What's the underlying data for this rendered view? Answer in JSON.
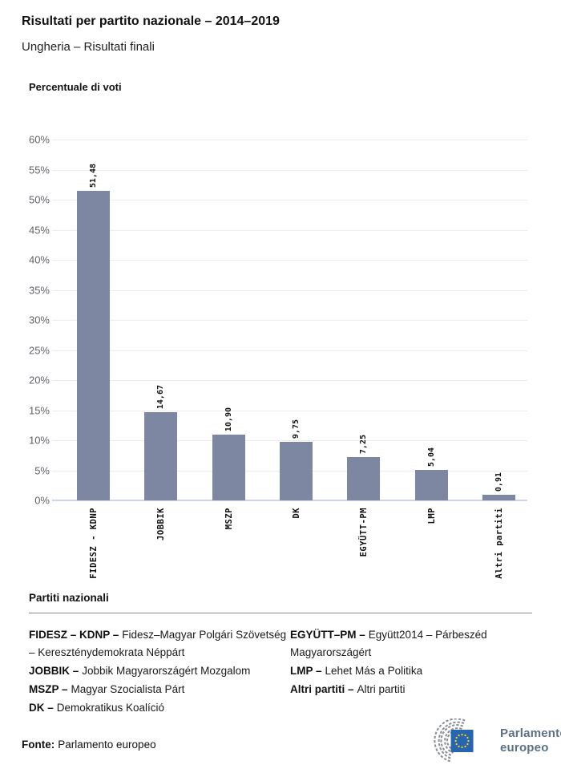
{
  "header": {
    "title": "Risultati per partito nazionale – 2014–2019",
    "subtitle": "Ungheria – Risultati finali"
  },
  "chart": {
    "heading": "Percentuale di voti"
  },
  "chart_data": {
    "type": "bar",
    "title": "Percentuale di voti",
    "categories": [
      "FIDESZ - KDNP",
      "JOBBIK",
      "MSZP",
      "DK",
      "EGYÜTT-PM",
      "LMP",
      "Altri partiti"
    ],
    "values": [
      51.48,
      14.67,
      10.9,
      9.75,
      7.25,
      5.04,
      0.91
    ],
    "value_labels": [
      "51,48",
      "14,67",
      "10,90",
      "9,75",
      "7,25",
      "5,04",
      "0,91"
    ],
    "xlabel": "",
    "ylabel": "Percentuale di voti",
    "ylim": [
      0,
      60
    ],
    "ytick_step": 5,
    "ytick_labels": [
      "0%",
      "5%",
      "10%",
      "15%",
      "20%",
      "25%",
      "30%",
      "35%",
      "40%",
      "45%",
      "50%",
      "55%",
      "60%"
    ],
    "grid": true,
    "legend_position": "none",
    "bar_color": "#7e87a2",
    "axis_line_color": "#ccd6e8",
    "gridline_color": "#ececec"
  },
  "legend": {
    "heading": "Partiti nazionali",
    "columns": [
      {
        "items": [
          {
            "abbr": "FIDESZ – KDNP –",
            "name": "Fidesz–Magyar Polgári Szövetség – Kereszténydemokrata Néppárt"
          },
          {
            "abbr": "JOBBIK –",
            "name": "Jobbik Magyarországért Mozgalom"
          },
          {
            "abbr": "MSZP –",
            "name": "Magyar Szocialista Párt"
          },
          {
            "abbr": "DK –",
            "name": "Demokratikus Koalíció"
          }
        ]
      },
      {
        "items": [
          {
            "abbr": "EGYÜTT–PM –",
            "name": "Együtt2014 – Párbeszéd Magyarországért"
          },
          {
            "abbr": "LMP –",
            "name": "Lehet Más a Politika"
          },
          {
            "abbr": "Altri partiti –",
            "name": "Altri partiti"
          }
        ]
      }
    ]
  },
  "footer": {
    "source_label": "Fonte:",
    "source_value": "Parlamento europeo",
    "logo": {
      "line1": "Parlamento",
      "line2": "europeo",
      "flag_blue": "#2765af",
      "star_yellow": "#ffd617",
      "hemicycle_gray": "#8a9096",
      "text_color": "#5c7187"
    }
  }
}
